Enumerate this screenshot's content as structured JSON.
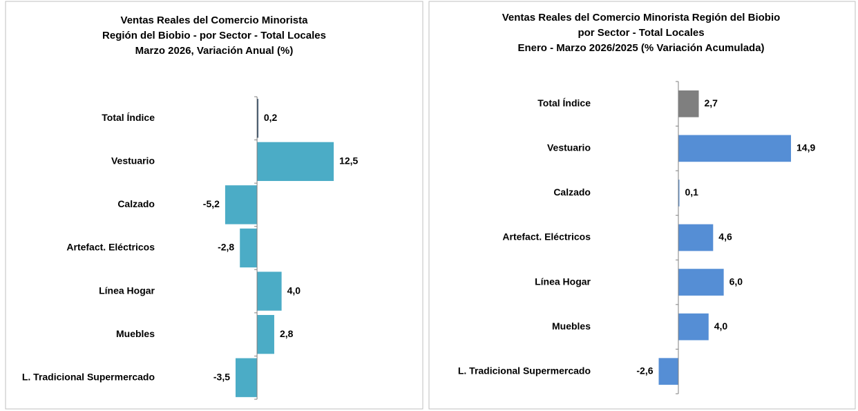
{
  "chart_data": [
    {
      "type": "bar",
      "orientation": "horizontal",
      "title": [
        "Ventas Reales del Comercio Minorista",
        "Región del Biobio - por Sector - Total Locales",
        "Marzo 2026, Variación Anual  (%)"
      ],
      "categories": [
        "Total Índice",
        "Vestuario",
        "Calzado",
        "Artefact. Eléctricos",
        "Línea Hogar",
        "Muebles",
        "L. Tradicional Supermercado"
      ],
      "values": [
        0.2,
        12.5,
        -5.2,
        -2.8,
        4.0,
        2.8,
        -3.5
      ],
      "value_labels": [
        "0,2",
        "12,5",
        "-5,2",
        "-2,8",
        "4,0",
        "2,8",
        "-3,5"
      ],
      "colors": [
        "#1f3d5c",
        "#4bacc6",
        "#4bacc6",
        "#4bacc6",
        "#4bacc6",
        "#4bacc6",
        "#4bacc6"
      ],
      "xlim": [
        -16,
        26
      ]
    },
    {
      "type": "bar",
      "orientation": "horizontal",
      "title": [
        "Ventas Reales del Comercio Minorista Región del Biobio",
        "por Sector - Total Locales",
        "Enero  - Marzo 2026/2025  (% Variación Acumulada)"
      ],
      "categories": [
        "Total Índice",
        "Vestuario",
        "Calzado",
        "Artefact. Eléctricos",
        "Línea Hogar",
        "Muebles",
        "L. Tradicional Supermercado"
      ],
      "values": [
        2.7,
        14.9,
        0.1,
        4.6,
        6.0,
        4.0,
        -2.6
      ],
      "value_labels": [
        "2,7",
        "14,9",
        "0,1",
        "4,6",
        "6,0",
        "4,0",
        "-2,6"
      ],
      "colors": [
        "#7f7f7f",
        "#558ed5",
        "#558ed5",
        "#558ed5",
        "#558ed5",
        "#558ed5",
        "#558ed5"
      ],
      "xlim": [
        -11,
        22
      ]
    }
  ]
}
